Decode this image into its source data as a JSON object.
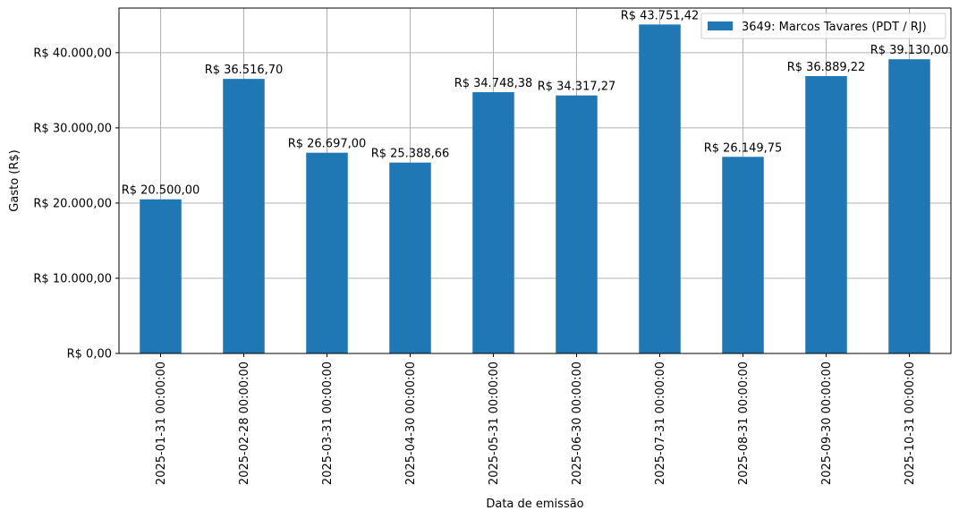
{
  "chart_data": {
    "type": "bar",
    "title": "",
    "xlabel": "Data de emissão",
    "ylabel": "Gasto (R$)",
    "categories": [
      "2025-01-31 00:00:00",
      "2025-02-28 00:00:00",
      "2025-03-31 00:00:00",
      "2025-04-30 00:00:00",
      "2025-05-31 00:00:00",
      "2025-06-30 00:00:00",
      "2025-07-31 00:00:00",
      "2025-08-31 00:00:00",
      "2025-09-30 00:00:00",
      "2025-10-31 00:00:00"
    ],
    "series": [
      {
        "name": "3649: Marcos Tavares (PDT / RJ)",
        "color": "#1f77b4",
        "values": [
          20500.0,
          36516.7,
          26697.0,
          25388.66,
          34748.38,
          34317.27,
          43751.42,
          26149.75,
          36889.22,
          39130.0
        ],
        "data_labels": [
          "R$ 20.500,00",
          "R$ 36.516,70",
          "R$ 26.697,00",
          "R$ 25.388,66",
          "R$ 34.748,38",
          "R$ 34.317,27",
          "R$ 43.751,42",
          "R$ 26.149,75",
          "R$ 36.889,22",
          "R$ 39.130,00"
        ]
      }
    ],
    "ylim": [
      0,
      45938
    ],
    "yticks": [
      0,
      10000,
      20000,
      30000,
      40000
    ],
    "ytick_labels": [
      "R$ 0,00",
      "R$ 10.000,00",
      "R$ 20.000,00",
      "R$ 30.000,00",
      "R$ 40.000,00"
    ],
    "grid": true,
    "legend_position": "top-right"
  }
}
